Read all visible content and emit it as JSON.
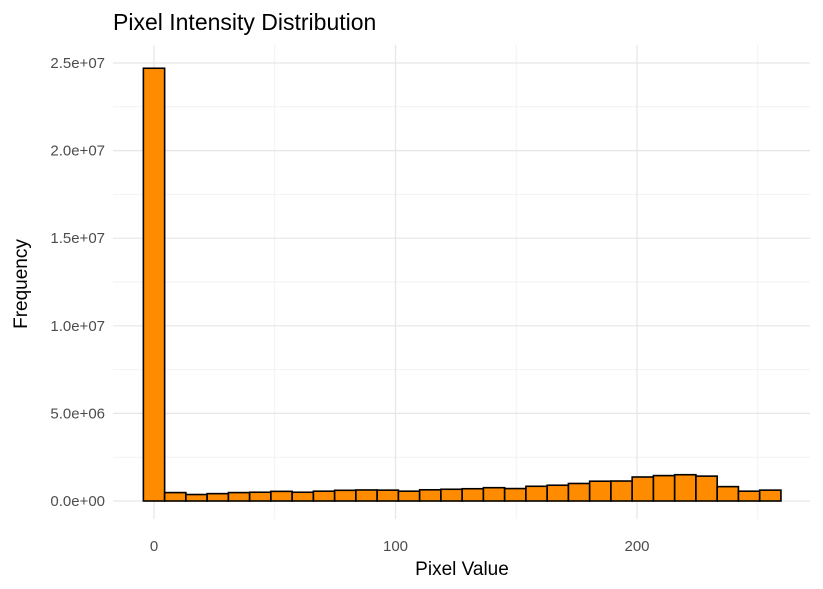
{
  "chart_data": {
    "type": "bar",
    "title": "Pixel Intensity Distribution",
    "xlabel": "Pixel Value",
    "ylabel": "Frequency",
    "xlim": [
      -10,
      270
    ],
    "ylim": [
      0,
      25000000
    ],
    "x_ticks": [
      0,
      100,
      200
    ],
    "x_tick_labels": [
      "0",
      "100",
      "200"
    ],
    "y_ticks": [
      0,
      5000000,
      10000000,
      15000000,
      20000000,
      25000000
    ],
    "y_tick_labels": [
      "0.0e+00",
      "5.0e+06",
      "1.0e+07",
      "1.5e+07",
      "2.0e+07",
      "2.5e+07"
    ],
    "grid": true,
    "legend": "none",
    "bar_color": "#ff8c00",
    "bar_border_color": "#000000",
    "bins": [
      {
        "x": 0,
        "value": 24700000
      },
      {
        "x": 8.8,
        "value": 480000
      },
      {
        "x": 17.6,
        "value": 370000
      },
      {
        "x": 26.4,
        "value": 420000
      },
      {
        "x": 35.2,
        "value": 480000
      },
      {
        "x": 44.0,
        "value": 500000
      },
      {
        "x": 52.8,
        "value": 550000
      },
      {
        "x": 61.6,
        "value": 500000
      },
      {
        "x": 70.4,
        "value": 560000
      },
      {
        "x": 79.2,
        "value": 610000
      },
      {
        "x": 88.0,
        "value": 630000
      },
      {
        "x": 96.8,
        "value": 620000
      },
      {
        "x": 105.6,
        "value": 560000
      },
      {
        "x": 114.4,
        "value": 640000
      },
      {
        "x": 123.2,
        "value": 670000
      },
      {
        "x": 132.0,
        "value": 700000
      },
      {
        "x": 140.8,
        "value": 760000
      },
      {
        "x": 149.6,
        "value": 710000
      },
      {
        "x": 158.4,
        "value": 840000
      },
      {
        "x": 167.2,
        "value": 900000
      },
      {
        "x": 176.0,
        "value": 1000000
      },
      {
        "x": 184.8,
        "value": 1130000
      },
      {
        "x": 193.6,
        "value": 1140000
      },
      {
        "x": 202.4,
        "value": 1370000
      },
      {
        "x": 211.2,
        "value": 1450000
      },
      {
        "x": 220.0,
        "value": 1500000
      },
      {
        "x": 228.8,
        "value": 1420000
      },
      {
        "x": 237.6,
        "value": 820000
      },
      {
        "x": 246.4,
        "value": 560000
      },
      {
        "x": 255.2,
        "value": 620000
      }
    ]
  }
}
